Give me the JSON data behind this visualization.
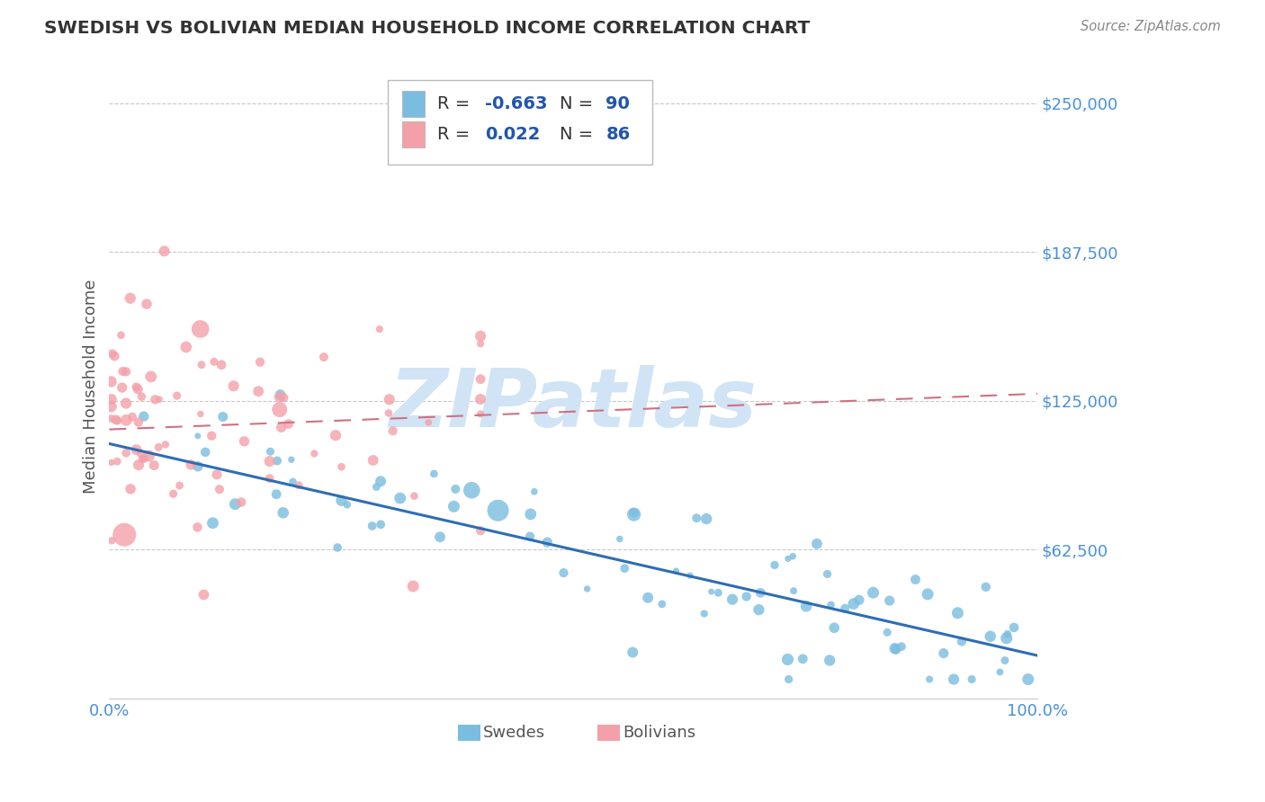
{
  "title": "SWEDISH VS BOLIVIAN MEDIAN HOUSEHOLD INCOME CORRELATION CHART",
  "source_text": "Source: ZipAtlas.com",
  "ylabel": "Median Household Income",
  "xlim": [
    0.0,
    1.0
  ],
  "ylim": [
    0,
    262500
  ],
  "yticks": [
    0,
    62500,
    125000,
    187500,
    250000
  ],
  "xtick_vals": [
    0.0,
    1.0
  ],
  "xtick_labels": [
    "0.0%",
    "100.0%"
  ],
  "grid_color": "#c8c8c8",
  "background_color": "#ffffff",
  "title_color": "#333333",
  "title_fontsize": 14.5,
  "axis_label_color": "#4a90d9",
  "ytick_color": "#4a90d9",
  "xtick_color": "#4a90d9",
  "watermark_text": "ZIPatlas",
  "watermark_color": "#d0e4f5",
  "watermark_fontsize": 65,
  "swedes_color": "#7bbde0",
  "swedes_trend_color": "#2e6db4",
  "swedes_R": -0.663,
  "swedes_N": 90,
  "swedes_trend_x": [
    0.0,
    1.0
  ],
  "swedes_trend_y": [
    107000,
    18000
  ],
  "bolivians_color": "#f4a0a8",
  "bolivians_trend_color": "#d07080",
  "bolivians_R": 0.022,
  "bolivians_N": 86,
  "bolivians_trend_x": [
    0.0,
    1.0
  ],
  "bolivians_trend_y": [
    113000,
    128000
  ],
  "legend_R_color": "#2255aa",
  "legend_N_color": "#2255aa",
  "legend_label_color": "#333333",
  "source_color": "#888888"
}
